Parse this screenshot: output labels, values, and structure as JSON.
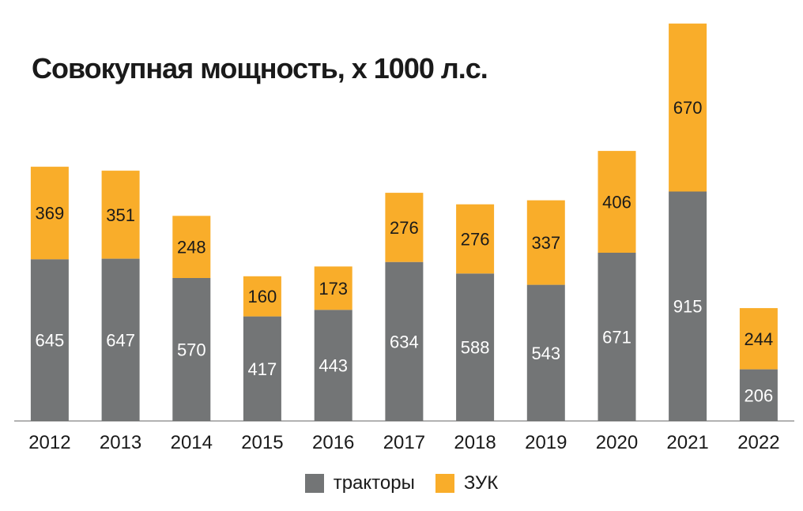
{
  "chart_data": {
    "type": "bar",
    "stacked": true,
    "title": "Совокупная мощность, х 1000 л.с.",
    "categories": [
      "2012",
      "2013",
      "2014",
      "2015",
      "2016",
      "2017",
      "2018",
      "2019",
      "2020",
      "2021",
      "2022"
    ],
    "series": [
      {
        "name": "тракторы",
        "color": "#737576",
        "label_color": "#ffffff",
        "values": [
          645,
          647,
          570,
          417,
          443,
          634,
          588,
          543,
          671,
          915,
          206
        ]
      },
      {
        "name": "ЗУК",
        "color": "#f9ad2a",
        "label_color": "#1a1a1a",
        "values": [
          369,
          351,
          248,
          160,
          173,
          276,
          276,
          337,
          406,
          670,
          244
        ]
      }
    ],
    "ylim": [
      0,
      1600
    ],
    "grid": false,
    "legend_position": "bottom"
  }
}
